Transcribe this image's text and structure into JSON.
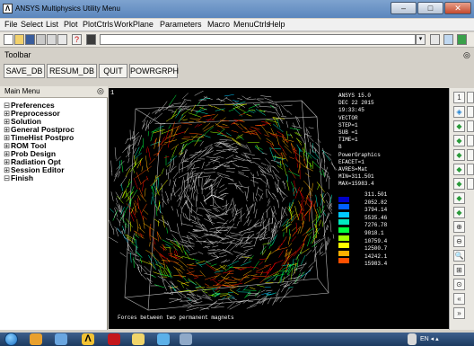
{
  "window": {
    "app_icon_letter": "Λ",
    "title": "ANSYS Multiphysics Utility Menu",
    "controls": [
      "–",
      "□",
      "✕"
    ]
  },
  "menubar": [
    "File",
    "Select",
    "List",
    "Plot",
    "PlotCtrls",
    "WorkPlane",
    "Parameters",
    "Macro",
    "MenuCtrls",
    "Help"
  ],
  "command_input": {
    "value": "",
    "dropdown": "▾"
  },
  "toolbar": {
    "label": "Toolbar",
    "collapse_icon": "◎",
    "buttons": [
      "SAVE_DB",
      "RESUM_DB",
      "QUIT",
      "POWRGRPH"
    ]
  },
  "main_menu": {
    "title": "Main Menu",
    "collapse_icon": "◎",
    "items": [
      {
        "expander": "⊟",
        "label": "Preferences"
      },
      {
        "expander": "⊞",
        "label": "Preprocessor"
      },
      {
        "expander": "⊞",
        "label": "Solution"
      },
      {
        "expander": "⊞",
        "label": "General Postproc"
      },
      {
        "expander": "⊞",
        "label": "TimeHist Postpro"
      },
      {
        "expander": "⊞",
        "label": "ROM Tool"
      },
      {
        "expander": "⊞",
        "label": "Prob Design"
      },
      {
        "expander": "⊞",
        "label": "Radiation Opt"
      },
      {
        "expander": "⊞",
        "label": "Session Editor"
      },
      {
        "expander": "⊟",
        "label": "Finish"
      }
    ]
  },
  "graphics": {
    "window_number": "1",
    "info_lines": [
      "ANSYS 15.0",
      "DEC 22 2015",
      "19:33:45",
      "VECTOR",
      "STEP=1",
      "SUB =1",
      "TIME=1",
      "B",
      "PowerGraphics",
      "EFACET=1",
      "AVRES=Mat",
      "MIN=311.501",
      "MAX=15983.4"
    ],
    "legend": [
      {
        "value": "311.501",
        "color": "#0000c8"
      },
      {
        "value": "2052.82",
        "color": "#0060ff"
      },
      {
        "value": "3794.14",
        "color": "#00c8ff"
      },
      {
        "value": "5535.46",
        "color": "#00e8c0"
      },
      {
        "value": "7276.78",
        "color": "#00ff40"
      },
      {
        "value": "9018.1",
        "color": "#a0ff00"
      },
      {
        "value": "10759.4",
        "color": "#ffff00"
      },
      {
        "value": "12500.7",
        "color": "#ffb000"
      },
      {
        "value": "14242.1",
        "color": "#ff5000"
      },
      {
        "value": "15983.4",
        "color": "#ff0000"
      }
    ],
    "caption": "Forces between two permanent magnets"
  },
  "right_tools": [
    "1",
    "◈",
    "◆",
    "◆",
    "◆",
    "◆",
    "◆",
    "◆",
    "◆",
    "⊕",
    "⊖",
    "🔍",
    "⊞",
    "⊙",
    "«",
    "»",
    "↑",
    "↓",
    "⊛"
  ],
  "taskbar": {
    "tray_text": "EN  ◂  ▴"
  }
}
